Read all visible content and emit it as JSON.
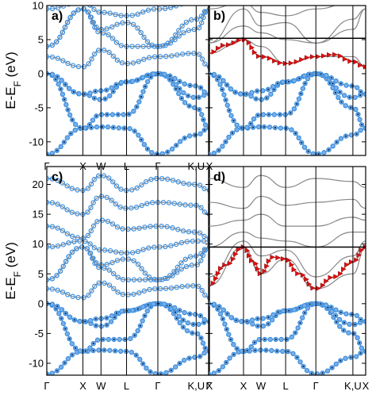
{
  "chart_data": [
    {
      "panel": "a)",
      "type": "line",
      "ylabel": "E-E",
      "ylabel_sub": "F",
      "ylabel_unit": " (eV)",
      "ylim": [
        -12,
        10
      ],
      "yticks": [
        -10,
        -5,
        0,
        5,
        10
      ],
      "kpoints": [
        "Γ",
        "X",
        "W",
        "L",
        "Γ",
        "K,U",
        "X"
      ],
      "kpos": [
        0,
        1,
        1.5,
        2.207,
        3.073,
        4.134,
        4.5
      ],
      "series": [
        {
          "x": [
            0,
            1,
            1.5,
            2.207,
            3.073,
            4.134,
            4.5
          ],
          "y": [
            -11.8,
            -8.0,
            -7.8,
            -8.0,
            -11.8,
            -9.0,
            -8.0
          ]
        },
        {
          "x": [
            0,
            1,
            1.5,
            2.207,
            3.073,
            4.134,
            4.5
          ],
          "y": [
            0,
            -8.0,
            -6.0,
            -6.0,
            0,
            -5.0,
            -8.0
          ]
        },
        {
          "x": [
            0,
            1,
            1.5,
            2.207,
            3.073,
            4.134,
            4.5
          ],
          "y": [
            0,
            -3.0,
            -3.8,
            -1.2,
            0,
            -3.5,
            -3.0
          ]
        },
        {
          "x": [
            0,
            1,
            1.5,
            2.207,
            3.073,
            4.134,
            4.5
          ],
          "y": [
            0,
            -3.0,
            -2.5,
            -1.2,
            0,
            -1.8,
            -3.0
          ]
        },
        {
          "x": [
            0,
            1,
            1.5,
            2.207,
            3.073,
            4.134,
            4.5
          ],
          "y": [
            2.5,
            1.0,
            3.5,
            1.5,
            2.5,
            3.0,
            1.0
          ]
        },
        {
          "x": [
            0,
            1,
            1.5,
            2.207,
            3.073,
            4.134,
            4.5
          ],
          "y": [
            4.0,
            9.5,
            6.0,
            4.0,
            4.0,
            6.5,
            9.5
          ]
        },
        {
          "x": [
            0,
            1,
            1.5,
            2.207,
            3.073,
            4.134,
            4.5
          ],
          "y": [
            4.0,
            9.5,
            6.5,
            7.5,
            4.0,
            8.0,
            9.5
          ]
        },
        {
          "x": [
            0,
            1,
            1.5,
            2.207,
            3.073,
            4.134,
            4.5
          ],
          "y": [
            9.5,
            10.5,
            9.0,
            8.5,
            9.5,
            10.5,
            10.5
          ]
        }
      ]
    },
    {
      "panel": "b)",
      "type": "line",
      "ylim": [
        -12,
        10
      ],
      "fermi_marker": 5.2,
      "kpos": [
        0,
        1,
        1.5,
        2.207,
        3.073,
        4.134,
        4.5
      ],
      "series": [
        {
          "x": [
            0,
            1,
            1.5,
            2.207,
            3.073,
            4.134,
            4.5
          ],
          "y": [
            -11.8,
            -8.0,
            -7.8,
            -8.0,
            -11.8,
            -9.0,
            -8.0
          ]
        },
        {
          "x": [
            0,
            1,
            1.5,
            2.207,
            3.073,
            4.134,
            4.5
          ],
          "y": [
            0,
            -8.0,
            -6.0,
            -6.0,
            0,
            -5.0,
            -8.0
          ]
        },
        {
          "x": [
            0,
            1,
            1.5,
            2.207,
            3.073,
            4.134,
            4.5
          ],
          "y": [
            0,
            -3.0,
            -3.8,
            -1.2,
            0,
            -3.5,
            -3.0
          ]
        },
        {
          "x": [
            0,
            1,
            1.5,
            2.207,
            3.073,
            4.134,
            4.5
          ],
          "y": [
            0,
            -3.0,
            -2.5,
            -1.2,
            0,
            -1.8,
            -3.0
          ]
        },
        {
          "x": [
            0,
            1,
            1.5,
            2.207,
            3.073,
            4.134,
            4.5
          ],
          "y": [
            3.0,
            5.0,
            4.0,
            1.5,
            2.5,
            2.5,
            1.0
          ]
        },
        {
          "x": [
            0,
            1,
            1.5,
            2.207,
            3.073,
            4.134,
            4.5
          ],
          "y": [
            4.5,
            7.0,
            6.0,
            5.0,
            4.5,
            6.5,
            9.5
          ]
        },
        {
          "x": [
            0,
            1,
            1.5,
            2.207,
            3.073,
            4.134,
            4.5
          ],
          "y": [
            4.5,
            9.5,
            7.0,
            7.5,
            4.5,
            8.0,
            9.5
          ]
        },
        {
          "x": [
            0,
            1,
            1.5,
            2.207,
            3.073,
            4.134,
            4.5
          ],
          "y": [
            9.5,
            10.5,
            9.0,
            8.5,
            9.5,
            10.5,
            10.5
          ]
        }
      ],
      "highlight": {
        "x": [
          0,
          0.5,
          1,
          1.5,
          2.207,
          3.073,
          3.6,
          4.134,
          4.5
        ],
        "y": [
          3.0,
          4.2,
          5.0,
          2.5,
          1.5,
          2.5,
          2.8,
          1.8,
          1.0
        ]
      }
    },
    {
      "panel": "c)",
      "type": "line",
      "ylabel": "E-E",
      "ylabel_sub": "F",
      "ylabel_unit": " (eV)",
      "ylim": [
        -12,
        23
      ],
      "yticks": [
        -10,
        -5,
        0,
        5,
        10,
        15,
        20
      ],
      "kpoints": [
        "Γ",
        "X",
        "W",
        "L",
        "Γ",
        "K,U",
        "X"
      ],
      "kpos": [
        0,
        1,
        1.5,
        2.207,
        3.073,
        4.134,
        4.5
      ],
      "series": [
        {
          "x": [
            0,
            1,
            1.5,
            2.207,
            3.073,
            4.134,
            4.5
          ],
          "y": [
            -11.8,
            -8.0,
            -7.8,
            -8.0,
            -11.8,
            -9.0,
            -8.0
          ]
        },
        {
          "x": [
            0,
            1,
            1.5,
            2.207,
            3.073,
            4.134,
            4.5
          ],
          "y": [
            0,
            -8.0,
            -6.0,
            -6.0,
            0,
            -5.0,
            -8.0
          ]
        },
        {
          "x": [
            0,
            1,
            1.5,
            2.207,
            3.073,
            4.134,
            4.5
          ],
          "y": [
            0,
            -3.0,
            -3.8,
            -1.2,
            0,
            -3.5,
            -3.0
          ]
        },
        {
          "x": [
            0,
            1,
            1.5,
            2.207,
            3.073,
            4.134,
            4.5
          ],
          "y": [
            0,
            -3.0,
            -2.5,
            -1.2,
            0,
            -1.8,
            -3.0
          ]
        },
        {
          "x": [
            0,
            1,
            1.5,
            2.207,
            3.073,
            4.134,
            4.5
          ],
          "y": [
            2.5,
            1.0,
            3.5,
            1.5,
            2.5,
            3.0,
            1.0
          ]
        },
        {
          "x": [
            0,
            1,
            1.5,
            2.207,
            3.073,
            4.134,
            4.5
          ],
          "y": [
            4.0,
            9.5,
            6.0,
            4.0,
            4.0,
            6.5,
            9.5
          ]
        },
        {
          "x": [
            0,
            1,
            1.5,
            2.207,
            3.073,
            4.134,
            4.5
          ],
          "y": [
            4.0,
            9.5,
            6.5,
            7.5,
            4.0,
            8.0,
            9.5
          ]
        },
        {
          "x": [
            0,
            1,
            1.5,
            2.207,
            3.073,
            4.134,
            4.5
          ],
          "y": [
            9.5,
            10.5,
            9.0,
            8.5,
            9.5,
            10.5,
            10.5
          ]
        },
        {
          "x": [
            0,
            1,
            1.5,
            2.207,
            3.073,
            4.134,
            4.5
          ],
          "y": [
            13.0,
            11.0,
            14.0,
            12.5,
            13.0,
            12.0,
            11.0
          ]
        },
        {
          "x": [
            0,
            1,
            1.5,
            2.207,
            3.073,
            4.134,
            4.5
          ],
          "y": [
            17.0,
            15.0,
            18.0,
            16.0,
            17.0,
            16.5,
            15.0
          ]
        },
        {
          "x": [
            0,
            1,
            1.5,
            2.207,
            3.073,
            4.134,
            4.5
          ],
          "y": [
            21.0,
            19.0,
            21.5,
            19.0,
            21.0,
            20.0,
            19.0
          ]
        }
      ]
    },
    {
      "panel": "d)",
      "type": "line",
      "ylim": [
        -12,
        23
      ],
      "fermi_marker": 9.5,
      "kpos": [
        0,
        1,
        1.5,
        2.207,
        3.073,
        4.134,
        4.5
      ],
      "series": [
        {
          "x": [
            0,
            1,
            1.5,
            2.207,
            3.073,
            4.134,
            4.5
          ],
          "y": [
            -11.8,
            -8.0,
            -7.8,
            -8.0,
            -11.8,
            -9.0,
            -8.0
          ]
        },
        {
          "x": [
            0,
            1,
            1.5,
            2.207,
            3.073,
            4.134,
            4.5
          ],
          "y": [
            0,
            -8.0,
            -6.0,
            -6.0,
            0,
            -5.0,
            -8.0
          ]
        },
        {
          "x": [
            0,
            1,
            1.5,
            2.207,
            3.073,
            4.134,
            4.5
          ],
          "y": [
            0,
            -3.0,
            -3.8,
            -1.2,
            0,
            -3.5,
            -3.0
          ]
        },
        {
          "x": [
            0,
            1,
            1.5,
            2.207,
            3.073,
            4.134,
            4.5
          ],
          "y": [
            0,
            -3.0,
            -2.5,
            -1.2,
            0,
            -1.8,
            -3.0
          ]
        },
        {
          "x": [
            0,
            1,
            1.5,
            2.207,
            3.073,
            4.134,
            4.5
          ],
          "y": [
            3.0,
            9.5,
            5.0,
            7.5,
            2.5,
            5.0,
            9.5
          ]
        },
        {
          "x": [
            0,
            1,
            1.5,
            2.207,
            3.073,
            4.134,
            4.5
          ],
          "y": [
            4.5,
            10.5,
            8.0,
            9.0,
            4.5,
            8.0,
            10.5
          ]
        },
        {
          "x": [
            0,
            1,
            1.5,
            2.207,
            3.073,
            4.134,
            4.5
          ],
          "y": [
            9.5,
            12.0,
            11.0,
            10.5,
            9.5,
            12.0,
            12.0
          ]
        },
        {
          "x": [
            0,
            1,
            1.5,
            2.207,
            3.073,
            4.134,
            4.5
          ],
          "y": [
            13.0,
            14.0,
            15.0,
            13.0,
            13.0,
            14.5,
            14.0
          ]
        },
        {
          "x": [
            0,
            1,
            1.5,
            2.207,
            3.073,
            4.134,
            4.5
          ],
          "y": [
            17.0,
            16.0,
            18.0,
            16.5,
            17.0,
            17.5,
            16.0
          ]
        },
        {
          "x": [
            0,
            1,
            1.5,
            2.207,
            3.073,
            4.134,
            4.5
          ],
          "y": [
            21.0,
            19.5,
            21.5,
            19.5,
            21.0,
            20.5,
            19.5
          ]
        }
      ],
      "highlight": {
        "x": [
          0,
          0.5,
          1,
          1.3,
          1.5,
          1.85,
          2.207,
          2.6,
          3.073,
          3.6,
          4.134,
          4.5
        ],
        "y": [
          3.0,
          6.5,
          9.5,
          7.0,
          5.0,
          7.8,
          7.5,
          5.0,
          2.5,
          4.5,
          7.0,
          9.5
        ]
      }
    }
  ],
  "colors": {
    "band": "#888888",
    "dot_fill": "#7ab0e8",
    "dot_stroke": "#3a8ee0",
    "dot_dark": "#0a2a5a",
    "highlight": "#e01010",
    "axis": "#000000"
  }
}
